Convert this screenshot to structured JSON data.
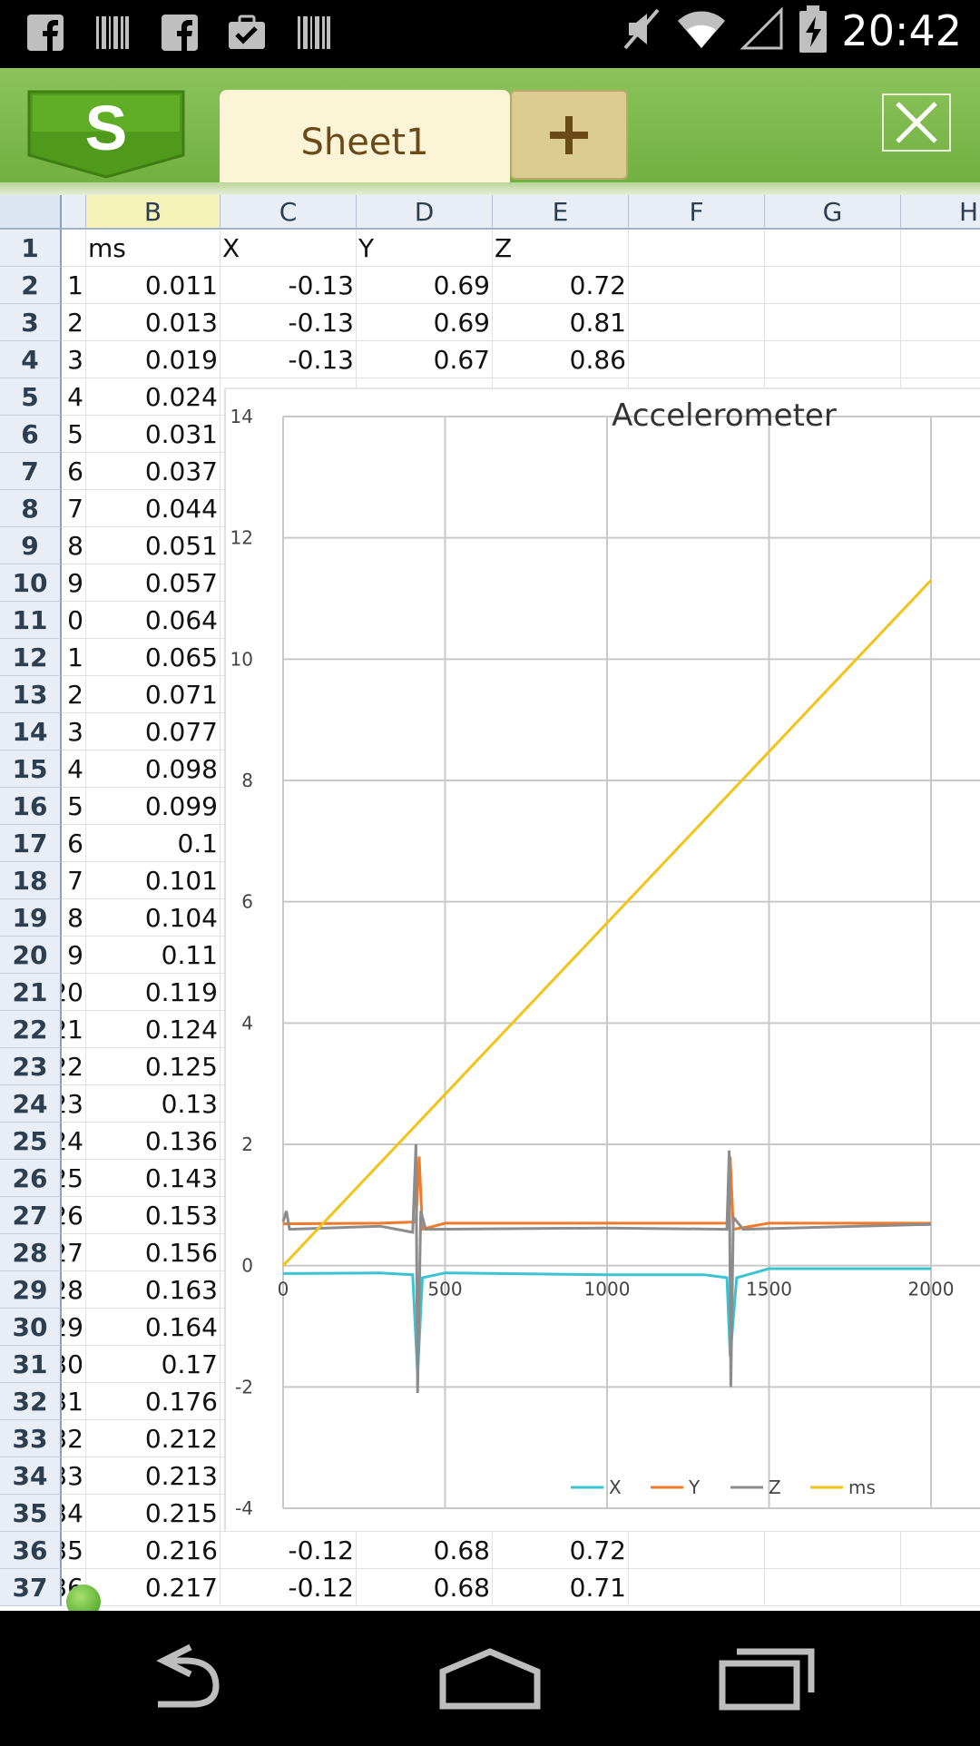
{
  "status_bar": {
    "time": "20:42",
    "left_icons": [
      "facebook-icon",
      "barcode-icon",
      "facebook-icon",
      "clipboard-check-icon",
      "barcode-icon"
    ],
    "right_icons": [
      "mute-icon",
      "wifi-icon",
      "signal-icon",
      "battery-charging-icon"
    ]
  },
  "toolbar": {
    "logo_text": "S",
    "sheet_tab": "Sheet1",
    "add_icon": "plus-icon",
    "close_icon": "close-icon"
  },
  "sheet": {
    "columns": [
      "B",
      "C",
      "D",
      "E",
      "F",
      "G",
      "H"
    ],
    "selected_column": "B",
    "row_numbers": [
      "1",
      "2",
      "3",
      "4",
      "5",
      "6",
      "7",
      "8",
      "9",
      "10",
      "11",
      "12",
      "13",
      "14",
      "15",
      "16",
      "17",
      "18",
      "19",
      "20",
      "21",
      "22",
      "23",
      "24",
      "25",
      "26",
      "27",
      "28",
      "29",
      "30",
      "31",
      "32",
      "33",
      "34",
      "35",
      "36",
      "37"
    ],
    "col_a_fragments": [
      "",
      "1",
      "2",
      "3",
      "4",
      "5",
      "6",
      "7",
      "8",
      "9",
      "0",
      "1",
      "2",
      "3",
      "4",
      "5",
      "6",
      "7",
      "8",
      "9",
      "20",
      "21",
      "22",
      "23",
      "24",
      "25",
      "26",
      "27",
      "28",
      "29",
      "30",
      "31",
      "32",
      "33",
      "34",
      "35",
      "36"
    ],
    "col_b": [
      "ms",
      "0.011",
      "0.013",
      "0.019",
      "0.024",
      "0.031",
      "0.037",
      "0.044",
      "0.051",
      "0.057",
      "0.064",
      "0.065",
      "0.071",
      "0.077",
      "0.098",
      "0.099",
      "0.1",
      "0.101",
      "0.104",
      "0.11",
      "0.119",
      "0.124",
      "0.125",
      "0.13",
      "0.136",
      "0.143",
      "0.153",
      "0.156",
      "0.163",
      "0.164",
      "0.17",
      "0.176",
      "0.212",
      "0.213",
      "0.215",
      "0.216",
      "0.217"
    ],
    "header_row": {
      "c": "X",
      "d": "Y",
      "e": "Z"
    },
    "rows_cde": {
      "2": [
        "-0.13",
        "0.69",
        "0.72"
      ],
      "3": [
        "-0.13",
        "0.69",
        "0.81"
      ],
      "4": [
        "-0.13",
        "0.67",
        "0.86"
      ],
      "36": [
        "-0.12",
        "0.68",
        "0.72"
      ],
      "37": [
        "-0.12",
        "0.68",
        "0.71"
      ]
    }
  },
  "chart_data": {
    "type": "line",
    "title": "Accelerometer",
    "xlim": [
      0,
      2000
    ],
    "ylim": [
      -4,
      14
    ],
    "x_ticks": [
      "0",
      "500",
      "1000",
      "1500",
      "2000"
    ],
    "y_ticks": [
      "14",
      "12",
      "10",
      "8",
      "6",
      "4",
      "2",
      "0",
      "-2",
      "-4"
    ],
    "grid": true,
    "legend_position": "bottom",
    "series": [
      {
        "name": "X",
        "color": "#3cc3d1",
        "points": [
          [
            0,
            -0.13
          ],
          [
            300,
            -0.12
          ],
          [
            400,
            -0.15
          ],
          [
            415,
            -1.8
          ],
          [
            430,
            -0.2
          ],
          [
            500,
            -0.12
          ],
          [
            1000,
            -0.15
          ],
          [
            1300,
            -0.15
          ],
          [
            1370,
            -0.2
          ],
          [
            1380,
            -1.5
          ],
          [
            1400,
            -0.2
          ],
          [
            1500,
            -0.05
          ],
          [
            2000,
            -0.05
          ]
        ]
      },
      {
        "name": "Y",
        "color": "#f07a2a",
        "points": [
          [
            0,
            0.69
          ],
          [
            300,
            0.7
          ],
          [
            410,
            0.72
          ],
          [
            420,
            1.8
          ],
          [
            430,
            0.6
          ],
          [
            500,
            0.7
          ],
          [
            1000,
            0.7
          ],
          [
            1370,
            0.7
          ],
          [
            1380,
            1.8
          ],
          [
            1390,
            0.6
          ],
          [
            1500,
            0.7
          ],
          [
            2000,
            0.7
          ]
        ]
      },
      {
        "name": "Z",
        "color": "#8c8c8c",
        "points": [
          [
            0,
            0.72
          ],
          [
            10,
            0.9
          ],
          [
            20,
            0.6
          ],
          [
            300,
            0.65
          ],
          [
            400,
            0.55
          ],
          [
            410,
            2.0
          ],
          [
            415,
            -2.1
          ],
          [
            425,
            0.9
          ],
          [
            440,
            0.6
          ],
          [
            1000,
            0.62
          ],
          [
            1370,
            0.6
          ],
          [
            1377,
            1.9
          ],
          [
            1382,
            -2.0
          ],
          [
            1390,
            0.8
          ],
          [
            1420,
            0.6
          ],
          [
            2000,
            0.68
          ]
        ]
      },
      {
        "name": "ms",
        "color": "#f2c318",
        "points": [
          [
            0,
            0.0
          ],
          [
            2000,
            11.3
          ]
        ]
      }
    ]
  }
}
